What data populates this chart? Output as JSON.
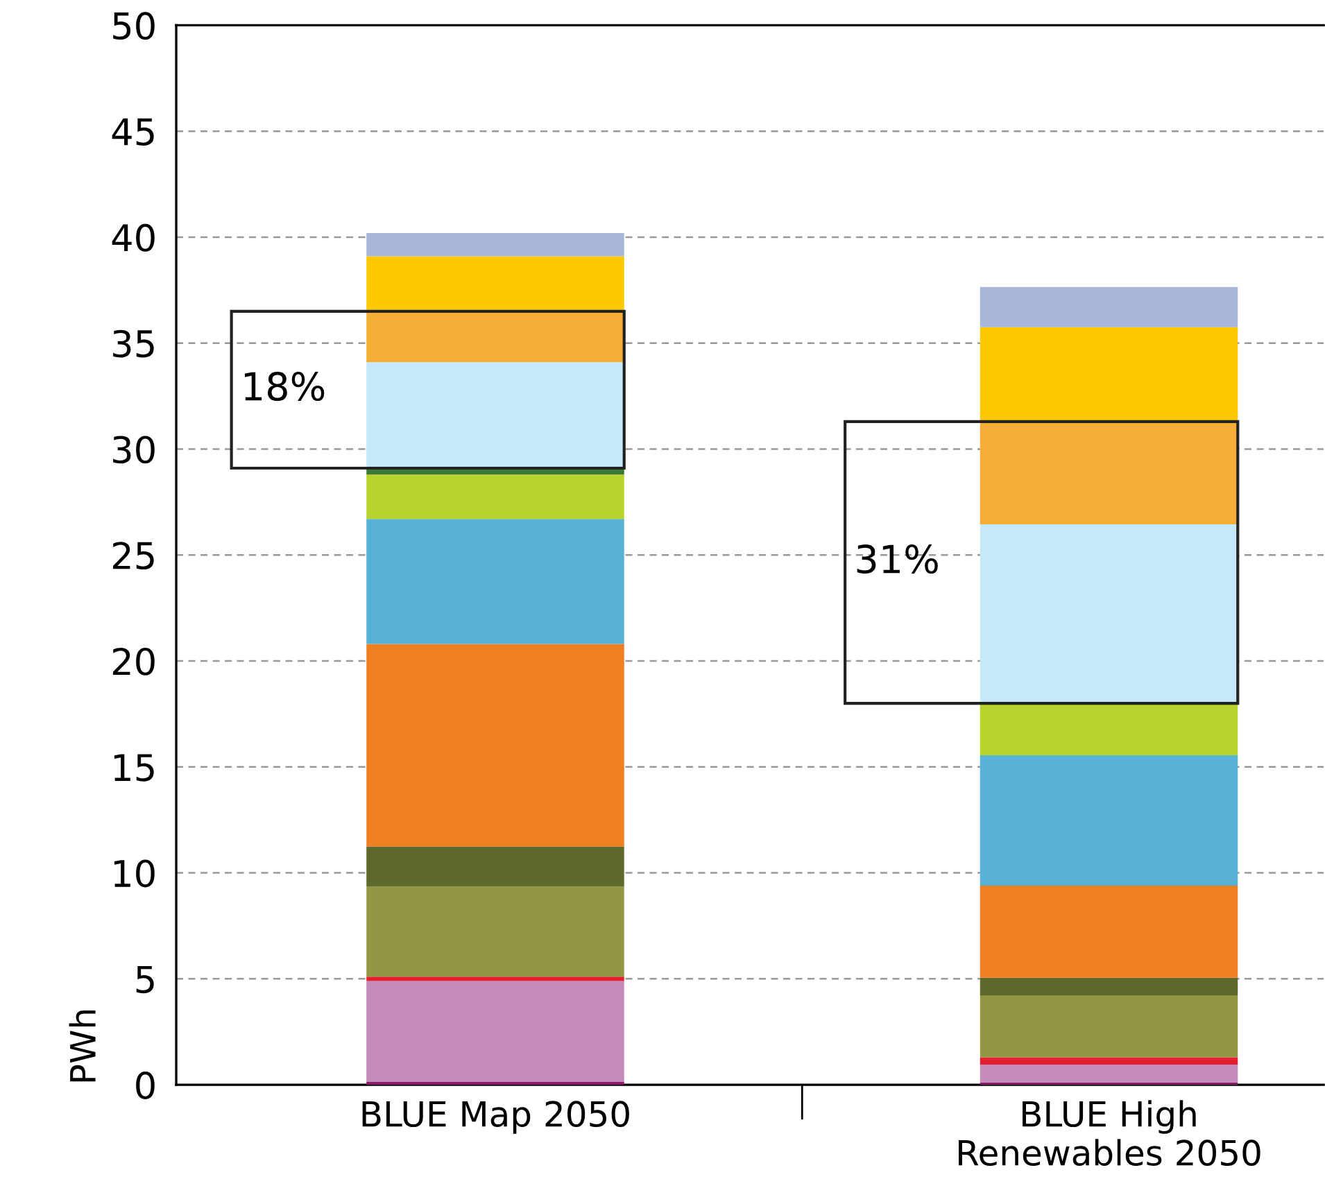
{
  "chart_data": {
    "type": "bar",
    "stacked": true,
    "ylabel": "PWh",
    "categories": [
      "BLUE Map 2050",
      "BLUE High\nRenewables 2050"
    ],
    "series": [
      {
        "color": "#8b1a6b",
        "values": [
          0.15,
          0.1
        ]
      },
      {
        "color": "#c48bbb",
        "values": [
          4.75,
          0.85
        ]
      },
      {
        "color": "#e31e2e",
        "values": [
          0.2,
          0.35
        ]
      },
      {
        "color": "#939744",
        "values": [
          4.25,
          2.9
        ]
      },
      {
        "color": "#5e6a2b",
        "values": [
          1.9,
          0.85
        ]
      },
      {
        "color": "#f07f22",
        "values": [
          9.55,
          4.35
        ]
      },
      {
        "color": "#58b2d5",
        "values": [
          5.9,
          6.15
        ]
      },
      {
        "color": "#bad32c",
        "values": [
          2.1,
          2.45
        ]
      },
      {
        "color": "#3a7a34",
        "values": [
          0.3,
          null
        ]
      },
      {
        "color": "#c6e9fa",
        "values": [
          5.0,
          8.45
        ]
      },
      {
        "color": "#f5ae35",
        "values": [
          2.4,
          4.85
        ]
      },
      {
        "color": "#fcc800",
        "values": [
          2.6,
          4.45
        ]
      },
      {
        "color": "#a8b6d9",
        "values": [
          1.1,
          1.9
        ]
      }
    ],
    "ylim": [
      0,
      50
    ],
    "yticks": [
      0,
      5,
      10,
      15,
      20,
      25,
      30,
      35,
      40,
      45,
      50
    ],
    "grid": "y",
    "legend": false,
    "annotations": [
      "18%",
      "31%"
    ]
  }
}
